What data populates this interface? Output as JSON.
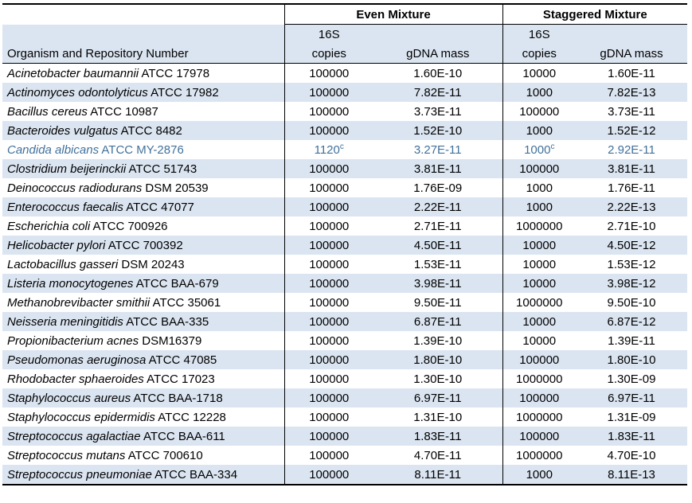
{
  "chart_data": {
    "type": "table",
    "group_headers": [
      "Even Mixture",
      "Staggered Mixture"
    ],
    "organism_header": "Organism and Repository Number",
    "copies_header_line1": "16S",
    "copies_header_line2": "copies",
    "gdna_header": "gDNA mass",
    "footnote_marker": "c",
    "colors": {
      "band": "#DBE5F1",
      "highlight_text": "#41719C",
      "border": "#000000"
    },
    "rows": [
      {
        "organism": "Acinetobacter baumannii",
        "repository": "ATCC 17978",
        "even_copies": "100000",
        "even_gdna": "1.60E-10",
        "staggered_copies": "10000",
        "staggered_gdna": "1.60E-11",
        "highlight": false
      },
      {
        "organism": "Actinomyces odontolyticus",
        "repository": "ATCC 17982",
        "even_copies": "100000",
        "even_gdna": "7.82E-11",
        "staggered_copies": "1000",
        "staggered_gdna": "7.82E-13",
        "highlight": false
      },
      {
        "organism": "Bacillus cereus",
        "repository": "ATCC 10987",
        "even_copies": "100000",
        "even_gdna": "3.73E-11",
        "staggered_copies": "100000",
        "staggered_gdna": "3.73E-11",
        "highlight": false
      },
      {
        "organism": "Bacteroides vulgatus",
        "repository": "ATCC 8482",
        "even_copies": "100000",
        "even_gdna": "1.52E-10",
        "staggered_copies": "1000",
        "staggered_gdna": "1.52E-12",
        "highlight": false
      },
      {
        "organism": "Candida albicans",
        "repository": "ATCC MY-2876",
        "even_copies": "1120",
        "even_copies_sup": "c",
        "even_gdna": "3.27E-11",
        "staggered_copies": "1000",
        "staggered_copies_sup": "c",
        "staggered_gdna": "2.92E-11",
        "highlight": true
      },
      {
        "organism": "Clostridium beijerinckii",
        "repository": "ATCC 51743",
        "even_copies": "100000",
        "even_gdna": "3.81E-11",
        "staggered_copies": "100000",
        "staggered_gdna": "3.81E-11",
        "highlight": false
      },
      {
        "organism": "Deinococcus radiodurans",
        "repository": "DSM 20539",
        "even_copies": "100000",
        "even_gdna": "1.76E-09",
        "staggered_copies": "1000",
        "staggered_gdna": "1.76E-11",
        "highlight": false
      },
      {
        "organism": "Enterococcus faecalis",
        "repository": "ATCC 47077",
        "even_copies": "100000",
        "even_gdna": "2.22E-11",
        "staggered_copies": "1000",
        "staggered_gdna": "2.22E-13",
        "highlight": false
      },
      {
        "organism": "Escherichia coli",
        "repository": "ATCC 700926",
        "even_copies": "100000",
        "even_gdna": "2.71E-11",
        "staggered_copies": "1000000",
        "staggered_gdna": "2.71E-10",
        "highlight": false
      },
      {
        "organism": "Helicobacter pylori",
        "repository": "ATCC 700392",
        "even_copies": "100000",
        "even_gdna": "4.50E-11",
        "staggered_copies": "10000",
        "staggered_gdna": "4.50E-12",
        "highlight": false
      },
      {
        "organism": "Lactobacillus gasseri",
        "repository": "DSM 20243",
        "even_copies": "100000",
        "even_gdna": "1.53E-11",
        "staggered_copies": "10000",
        "staggered_gdna": "1.53E-12",
        "highlight": false
      },
      {
        "organism": "Listeria monocytogenes",
        "repository": "ATCC BAA-679",
        "even_copies": "100000",
        "even_gdna": "3.98E-11",
        "staggered_copies": "10000",
        "staggered_gdna": "3.98E-12",
        "highlight": false
      },
      {
        "organism": "Methanobrevibacter smithii",
        "repository": "ATCC 35061",
        "even_copies": "100000",
        "even_gdna": "9.50E-11",
        "staggered_copies": "1000000",
        "staggered_gdna": "9.50E-10",
        "highlight": false
      },
      {
        "organism": "Neisseria meningitidis",
        "repository": "ATCC BAA-335",
        "even_copies": "100000",
        "even_gdna": "6.87E-11",
        "staggered_copies": "10000",
        "staggered_gdna": "6.87E-12",
        "highlight": false
      },
      {
        "organism": "Propionibacterium acnes",
        "repository": "DSM16379",
        "even_copies": "100000",
        "even_gdna": "1.39E-10",
        "staggered_copies": "10000",
        "staggered_gdna": "1.39E-11",
        "highlight": false
      },
      {
        "organism": "Pseudomonas aeruginosa",
        "repository": "ATCC 47085",
        "even_copies": "100000",
        "even_gdna": "1.80E-10",
        "staggered_copies": "100000",
        "staggered_gdna": "1.80E-10",
        "highlight": false
      },
      {
        "organism": "Rhodobacter sphaeroides",
        "repository": "ATCC 17023",
        "even_copies": "100000",
        "even_gdna": "1.30E-10",
        "staggered_copies": "1000000",
        "staggered_gdna": "1.30E-09",
        "highlight": false
      },
      {
        "organism": "Staphylococcus aureus",
        "repository": "ATCC BAA-1718",
        "even_copies": "100000",
        "even_gdna": "6.97E-11",
        "staggered_copies": "100000",
        "staggered_gdna": "6.97E-11",
        "highlight": false
      },
      {
        "organism": "Staphylococcus epidermidis",
        "repository": "ATCC 12228",
        "even_copies": "100000",
        "even_gdna": "1.31E-10",
        "staggered_copies": "1000000",
        "staggered_gdna": "1.31E-09",
        "highlight": false
      },
      {
        "organism": "Streptococcus agalactiae",
        "repository": "ATCC BAA-611",
        "even_copies": "100000",
        "even_gdna": "1.83E-11",
        "staggered_copies": "100000",
        "staggered_gdna": "1.83E-11",
        "highlight": false
      },
      {
        "organism": "Streptococcus mutans",
        "repository": "ATCC 700610",
        "even_copies": "100000",
        "even_gdna": "4.70E-11",
        "staggered_copies": "1000000",
        "staggered_gdna": "4.70E-10",
        "highlight": false
      },
      {
        "organism": "Streptococcus pneumoniae",
        "repository": "ATCC BAA-334",
        "even_copies": "100000",
        "even_gdna": "8.11E-11",
        "staggered_copies": "1000",
        "staggered_gdna": "8.11E-13",
        "highlight": false
      }
    ]
  }
}
